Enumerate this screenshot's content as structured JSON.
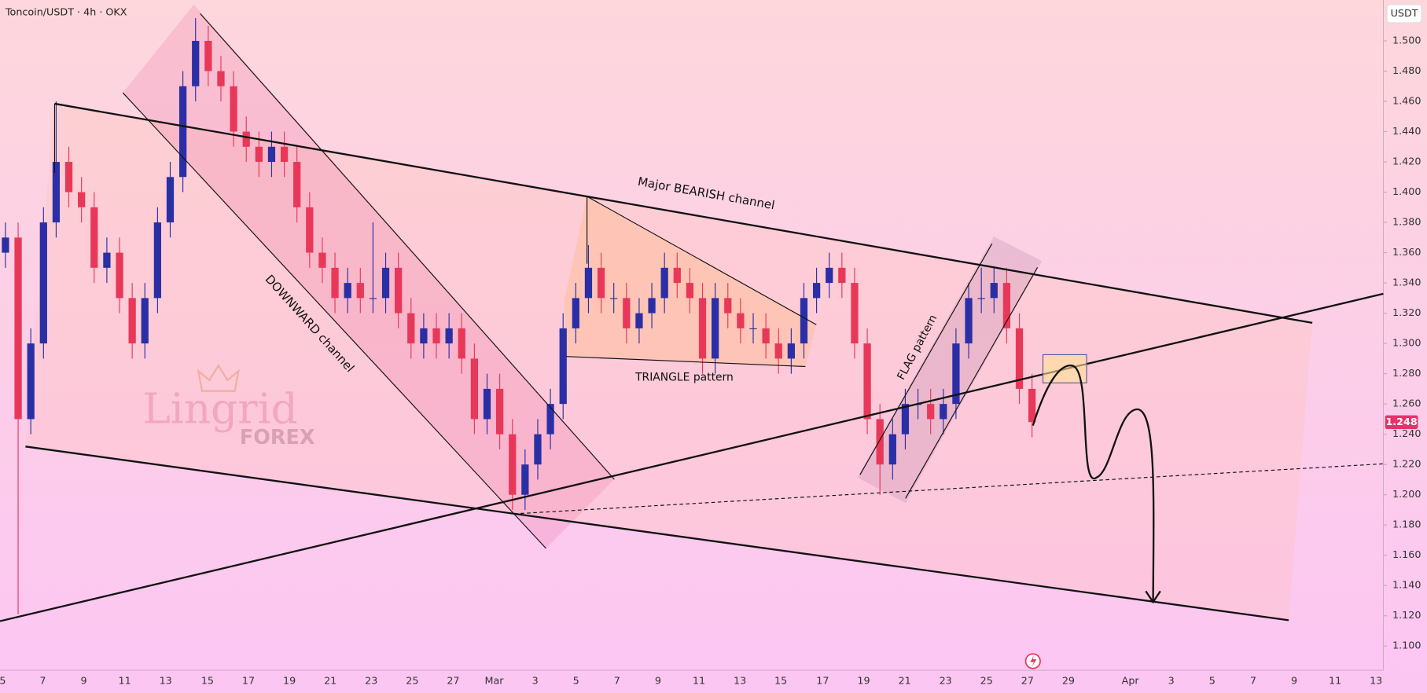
{
  "chart_data": {
    "type": "candlestick",
    "title": "Toncoin/USDT · 4h · OKX",
    "y_unit": "USDT",
    "up_color": "#2b2fa6",
    "down_color": "#e8385a",
    "open": [
      1.36,
      1.37,
      1.25,
      1.3,
      1.38,
      1.42,
      1.4,
      1.39,
      1.35,
      1.36,
      1.33,
      1.3,
      1.33,
      1.38,
      1.41,
      1.47,
      1.5,
      1.48,
      1.47,
      1.44,
      1.43,
      1.42,
      1.43,
      1.42,
      1.39,
      1.36,
      1.35,
      1.33,
      1.34,
      1.33,
      1.33,
      1.35,
      1.32,
      1.3,
      1.31,
      1.3,
      1.31,
      1.29,
      1.25,
      1.27,
      1.24,
      1.2,
      1.22,
      1.24,
      1.26,
      1.31,
      1.33,
      1.35,
      1.33,
      1.33,
      1.31,
      1.32,
      1.33,
      1.35,
      1.34,
      1.33,
      1.29,
      1.33,
      1.32,
      1.31,
      1.31,
      1.3,
      1.29,
      1.3,
      1.33,
      1.34,
      1.35,
      1.34,
      1.3,
      1.25,
      1.22,
      1.24,
      1.26,
      1.26,
      1.25,
      1.26,
      1.3,
      1.33,
      1.33,
      1.34,
      1.31,
      1.27
    ],
    "high": [
      1.38,
      1.38,
      1.31,
      1.39,
      1.46,
      1.43,
      1.41,
      1.4,
      1.37,
      1.37,
      1.34,
      1.34,
      1.39,
      1.42,
      1.48,
      1.515,
      1.51,
      1.49,
      1.48,
      1.45,
      1.44,
      1.44,
      1.44,
      1.43,
      1.4,
      1.37,
      1.36,
      1.35,
      1.35,
      1.38,
      1.36,
      1.36,
      1.33,
      1.32,
      1.32,
      1.32,
      1.32,
      1.3,
      1.28,
      1.28,
      1.25,
      1.23,
      1.25,
      1.27,
      1.32,
      1.34,
      1.365,
      1.36,
      1.34,
      1.34,
      1.33,
      1.34,
      1.36,
      1.36,
      1.35,
      1.34,
      1.34,
      1.34,
      1.33,
      1.32,
      1.32,
      1.31,
      1.31,
      1.34,
      1.35,
      1.36,
      1.36,
      1.35,
      1.31,
      1.26,
      1.25,
      1.27,
      1.27,
      1.27,
      1.27,
      1.31,
      1.34,
      1.35,
      1.35,
      1.35,
      1.32,
      1.28
    ],
    "low": [
      1.35,
      1.121,
      1.24,
      1.29,
      1.37,
      1.39,
      1.38,
      1.34,
      1.34,
      1.32,
      1.29,
      1.29,
      1.32,
      1.37,
      1.4,
      1.46,
      1.47,
      1.46,
      1.43,
      1.42,
      1.41,
      1.41,
      1.41,
      1.38,
      1.35,
      1.34,
      1.32,
      1.32,
      1.32,
      1.32,
      1.32,
      1.31,
      1.29,
      1.29,
      1.29,
      1.29,
      1.28,
      1.24,
      1.24,
      1.23,
      1.19,
      1.19,
      1.21,
      1.23,
      1.25,
      1.3,
      1.32,
      1.32,
      1.32,
      1.3,
      1.3,
      1.31,
      1.32,
      1.33,
      1.32,
      1.28,
      1.28,
      1.31,
      1.3,
      1.3,
      1.29,
      1.28,
      1.28,
      1.29,
      1.32,
      1.33,
      1.33,
      1.29,
      1.24,
      1.2,
      1.21,
      1.23,
      1.25,
      1.24,
      1.24,
      1.25,
      1.29,
      1.32,
      1.32,
      1.3,
      1.26,
      1.238
    ],
    "close": [
      1.37,
      1.25,
      1.3,
      1.38,
      1.42,
      1.4,
      1.39,
      1.35,
      1.36,
      1.33,
      1.3,
      1.33,
      1.38,
      1.41,
      1.47,
      1.5,
      1.48,
      1.47,
      1.44,
      1.43,
      1.42,
      1.43,
      1.42,
      1.39,
      1.36,
      1.35,
      1.33,
      1.34,
      1.33,
      1.33,
      1.35,
      1.32,
      1.3,
      1.31,
      1.3,
      1.31,
      1.29,
      1.25,
      1.27,
      1.24,
      1.2,
      1.22,
      1.24,
      1.26,
      1.31,
      1.33,
      1.35,
      1.33,
      1.33,
      1.31,
      1.32,
      1.33,
      1.35,
      1.34,
      1.33,
      1.29,
      1.33,
      1.32,
      1.31,
      1.31,
      1.3,
      1.29,
      1.3,
      1.33,
      1.34,
      1.35,
      1.34,
      1.3,
      1.25,
      1.22,
      1.24,
      1.26,
      1.26,
      1.25,
      1.26,
      1.3,
      1.33,
      1.33,
      1.34,
      1.31,
      1.27,
      1.248
    ],
    "ylim": [
      1.084,
      1.527
    ],
    "yticks": [
      {
        "value": 1.1,
        "label": "1.100"
      },
      {
        "value": 1.12,
        "label": "1.120"
      },
      {
        "value": 1.14,
        "label": "1.140"
      },
      {
        "value": 1.16,
        "label": "1.160"
      },
      {
        "value": 1.18,
        "label": "1.180"
      },
      {
        "value": 1.2,
        "label": "1.200"
      },
      {
        "value": 1.22,
        "label": "1.220"
      },
      {
        "value": 1.24,
        "label": "1.240"
      },
      {
        "value": 1.26,
        "label": "1.260"
      },
      {
        "value": 1.28,
        "label": "1.280"
      },
      {
        "value": 1.3,
        "label": "1.300"
      },
      {
        "value": 1.32,
        "label": "1.320"
      },
      {
        "value": 1.34,
        "label": "1.340"
      },
      {
        "value": 1.36,
        "label": "1.360"
      },
      {
        "value": 1.38,
        "label": "1.380"
      },
      {
        "value": 1.4,
        "label": "1.400"
      },
      {
        "value": 1.42,
        "label": "1.420"
      },
      {
        "value": 1.44,
        "label": "1.440"
      },
      {
        "value": 1.46,
        "label": "1.460"
      },
      {
        "value": 1.48,
        "label": "1.480"
      },
      {
        "value": 1.5,
        "label": "1.500"
      }
    ],
    "grid": false,
    "xtick_labels": [
      "5",
      "7",
      "9",
      "11",
      "13",
      "15",
      "17",
      "19",
      "21",
      "23",
      "25",
      "27",
      "Mar",
      "3",
      "5",
      "7",
      "9",
      "11",
      "13",
      "15",
      "17",
      "19",
      "21",
      "23",
      "25",
      "27",
      "29",
      "Apr",
      "3",
      "5",
      "7",
      "9",
      "11",
      "13"
    ],
    "annotations": [
      "Major BEARISH channel",
      "DOWNWARD channel",
      "TRIANGLE pattern",
      "FLAG pattern"
    ]
  },
  "watermark": {
    "brand": "Lingrid",
    "sub": "FOREX"
  }
}
